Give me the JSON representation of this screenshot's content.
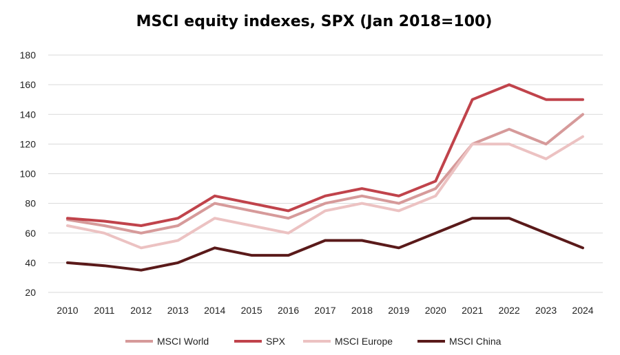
{
  "chart_data": {
    "type": "line",
    "title": "MSCI equity indexes, SPX (Jan 2018=100)",
    "x": [
      "2010",
      "2011",
      "2012",
      "2013",
      "2014",
      "2015",
      "2016",
      "2017",
      "2018",
      "2019",
      "2020",
      "2021",
      "2022",
      "2023",
      "2024"
    ],
    "ylim": [
      20,
      180
    ],
    "yticks": [
      20,
      40,
      60,
      80,
      100,
      120,
      140,
      160,
      180
    ],
    "grid": true,
    "legend_position": "bottom",
    "series": [
      {
        "name": "MSCI World",
        "color": "#d69a9a",
        "values": [
          69,
          65,
          60,
          65,
          80,
          75,
          70,
          80,
          85,
          80,
          90,
          120,
          130,
          120,
          140
        ]
      },
      {
        "name": "SPX",
        "color": "#c0434b",
        "values": [
          70,
          68,
          65,
          70,
          85,
          80,
          75,
          85,
          90,
          85,
          95,
          150,
          160,
          150,
          150
        ]
      },
      {
        "name": "MSCI Europe",
        "color": "#ecc2c2",
        "values": [
          65,
          60,
          50,
          55,
          70,
          65,
          60,
          75,
          80,
          75,
          85,
          120,
          120,
          110,
          125
        ]
      },
      {
        "name": "MSCI China",
        "color": "#5a1a1a",
        "values": [
          40,
          38,
          35,
          40,
          50,
          45,
          45,
          55,
          55,
          50,
          60,
          70,
          70,
          60,
          50
        ]
      }
    ]
  }
}
